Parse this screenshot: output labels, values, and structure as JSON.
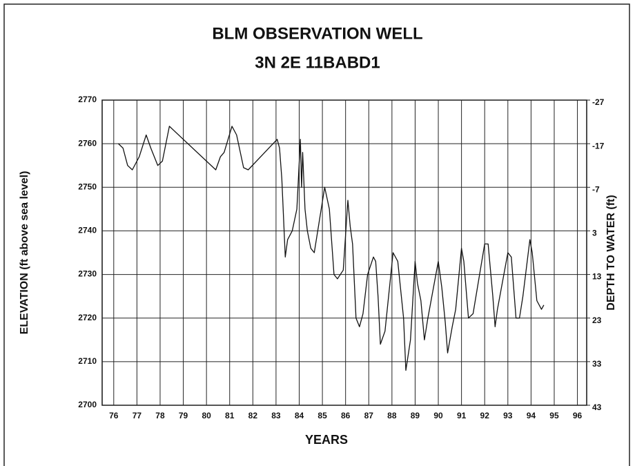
{
  "chart_data": {
    "type": "line",
    "title": "BLM OBSERVATION WELL",
    "subtitle": "3N 2E 11BABD1",
    "x_label": "YEARS",
    "y_label": "ELEVATION (ft above sea level)",
    "y2_label": "DEPTH TO WATER (ft)",
    "xlim": [
      75.5,
      96.4
    ],
    "xticks": [
      76,
      77,
      78,
      79,
      80,
      81,
      82,
      83,
      84,
      85,
      86,
      87,
      88,
      89,
      90,
      91,
      92,
      93,
      94,
      95,
      96
    ],
    "ylim": [
      2700,
      2770
    ],
    "yticks": [
      2700,
      2710,
      2720,
      2730,
      2740,
      2750,
      2760,
      2770
    ],
    "y2lim": [
      43,
      -27
    ],
    "y2ticks": [
      43,
      33,
      23,
      13,
      3,
      -7,
      -17,
      -27
    ],
    "grid": true,
    "series": [
      {
        "color": "#111111",
        "x": [
          76.2,
          76.4,
          76.6,
          76.8,
          77.1,
          77.4,
          77.6,
          77.9,
          78.1,
          78.4,
          78.6,
          80.4,
          80.6,
          80.76,
          81.1,
          81.3,
          81.6,
          81.8,
          83.05,
          83.15,
          83.25,
          83.4,
          83.5,
          83.7,
          83.9,
          84.05,
          84.1,
          84.15,
          84.25,
          84.35,
          84.5,
          84.65,
          85.1,
          85.3,
          85.5,
          85.65,
          85.9,
          86.1,
          86.2,
          86.3,
          86.45,
          86.6,
          86.75,
          86.95,
          87.2,
          87.3,
          87.4,
          87.5,
          87.7,
          88.05,
          88.25,
          88.5,
          88.6,
          88.8,
          89.0,
          89.1,
          89.25,
          89.4,
          89.55,
          90.0,
          90.15,
          90.3,
          90.4,
          90.6,
          90.75,
          91.0,
          91.1,
          91.3,
          91.5,
          92.0,
          92.15,
          92.35,
          92.45,
          92.55,
          93.0,
          93.15,
          93.35,
          93.5,
          93.65,
          93.95,
          94.05,
          94.25,
          94.45,
          94.55
        ],
        "values": [
          2760,
          2759,
          2755,
          2754,
          2757,
          2762,
          2759,
          2755,
          2756,
          2764,
          2763,
          2754,
          2757,
          2758,
          2764,
          2762,
          2754.5,
          2754,
          2761,
          2759,
          2752,
          2734,
          2738,
          2740,
          2745,
          2761,
          2750,
          2758,
          2745,
          2740,
          2736,
          2735,
          2750,
          2745,
          2730,
          2729,
          2731,
          2747,
          2741,
          2737,
          2720,
          2718,
          2721,
          2730,
          2734,
          2733,
          2725,
          2714,
          2717,
          2735,
          2733,
          2720,
          2708,
          2715,
          2733,
          2728,
          2724,
          2715,
          2720,
          2733,
          2727,
          2719,
          2712,
          2718,
          2722,
          2736,
          2733,
          2720,
          2721,
          2737,
          2737,
          2725,
          2718,
          2722,
          2735,
          2734,
          2720,
          2720,
          2725,
          2738,
          2735,
          2724,
          2722,
          2723
        ]
      }
    ]
  }
}
